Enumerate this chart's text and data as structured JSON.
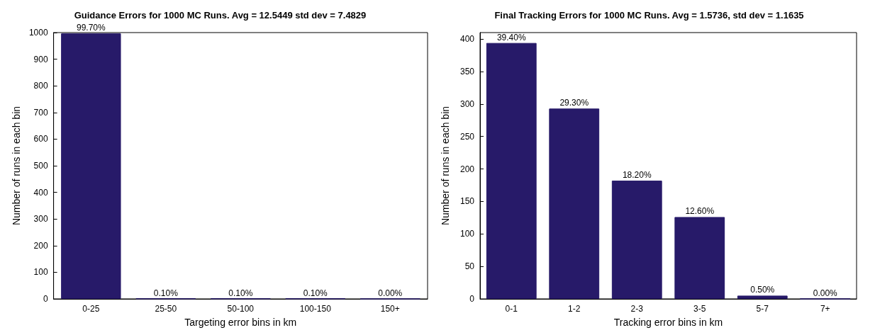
{
  "chart_data": [
    {
      "type": "bar",
      "title": "Guidance Errors for 1000 MC Runs. Avg = 12.5449 std dev = 7.4829",
      "xlabel": "Targeting error bins in km",
      "ylabel": "Number of runs in each bin",
      "categories": [
        "0-25",
        "25-50",
        "50-100",
        "100-150",
        "150+"
      ],
      "values": [
        997,
        1,
        1,
        1,
        0
      ],
      "color": "#271a69",
      "ylim": [
        0,
        1000
      ],
      "yticks": [
        0,
        100,
        200,
        300,
        400,
        500,
        600,
        700,
        800,
        900,
        1000
      ],
      "annotations": [
        {
          "text": "99.70%",
          "x": "0-25",
          "y": 997
        },
        {
          "text": "0.10%",
          "x": "25-50",
          "y": 1
        },
        {
          "text": "0.10%",
          "x": "50-100",
          "y": 1
        },
        {
          "text": "0.10%",
          "x": "100-150",
          "y": 1
        },
        {
          "text": "0.00%",
          "x": "150+",
          "y": 0
        }
      ]
    },
    {
      "type": "bar",
      "title": "Final Tracking Errors for 1000 MC Runs. Avg = 1.5736, std dev = 1.1635",
      "xlabel": "Tracking error bins in km",
      "ylabel": "Number of runs in each bin",
      "categories": [
        "0-1",
        "1-2",
        "2-3",
        "3-5",
        "5-7",
        "7+"
      ],
      "values": [
        394,
        293,
        182,
        126,
        5,
        0
      ],
      "color": "#271a69",
      "ylim": [
        0,
        410
      ],
      "yticks": [
        0,
        50,
        100,
        150,
        200,
        250,
        300,
        350,
        400
      ],
      "annotations": [
        {
          "text": "39.40%",
          "x": "0-1",
          "y": 394
        },
        {
          "text": "29.30%",
          "x": "1-2",
          "y": 293
        },
        {
          "text": "18.20%",
          "x": "2-3",
          "y": 182
        },
        {
          "text": "12.60%",
          "x": "3-5",
          "y": 126
        },
        {
          "text": "0.50%",
          "x": "5-7",
          "y": 5
        },
        {
          "text": "0.00%",
          "x": "7+",
          "y": 0
        }
      ]
    }
  ]
}
